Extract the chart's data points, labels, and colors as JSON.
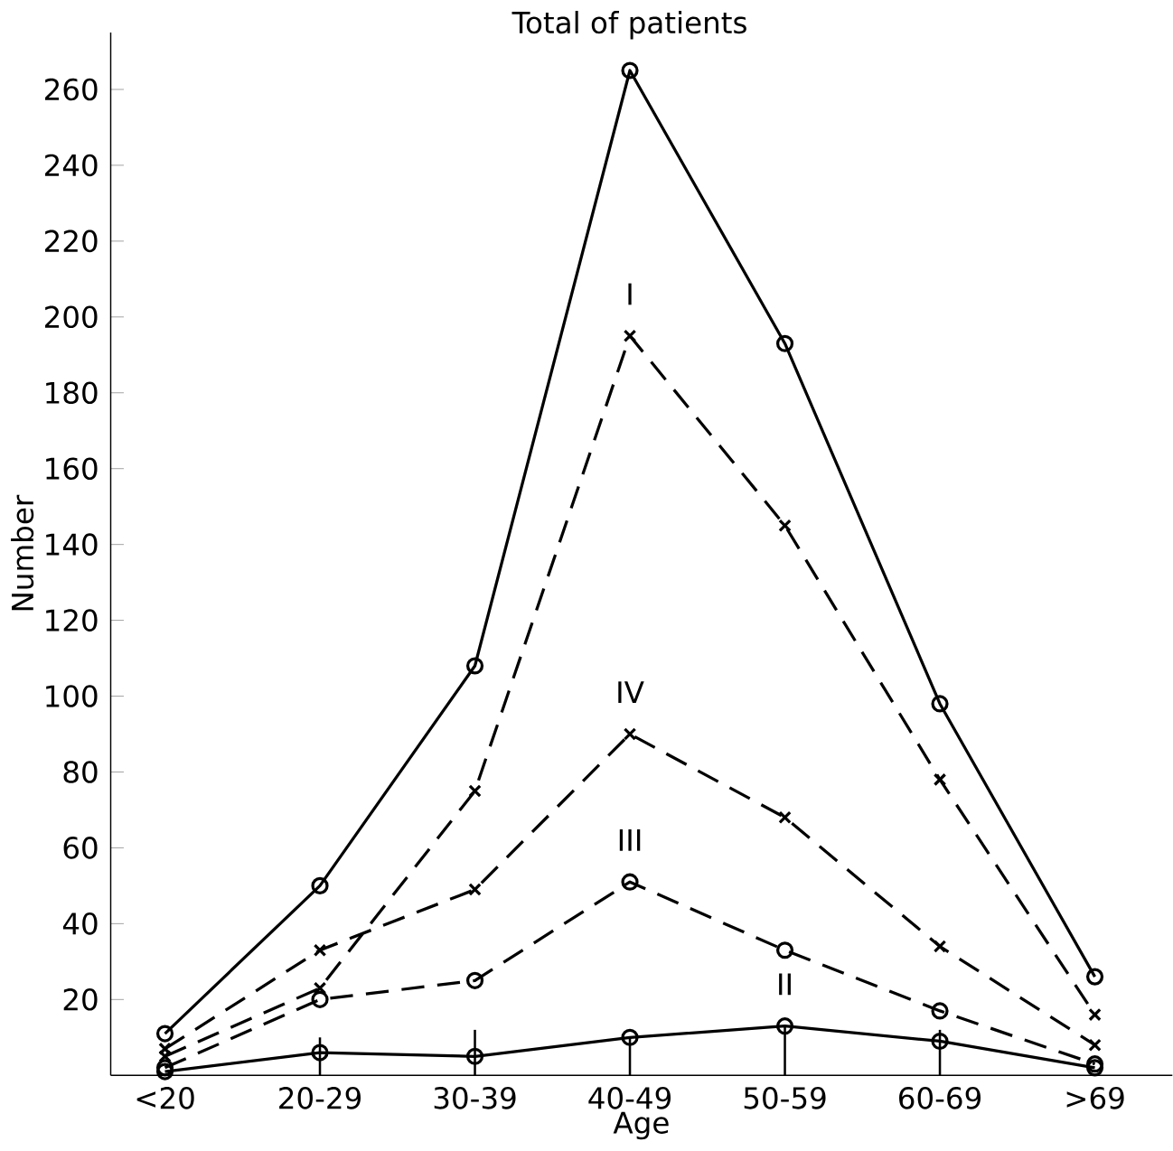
{
  "chart_data": {
    "type": "line",
    "xlabel": "Age",
    "ylabel": "Number",
    "categories": [
      "<20",
      "20-29",
      "30-39",
      "40-49",
      "50-59",
      "60-69",
      ">69"
    ],
    "ylim": [
      0,
      275
    ],
    "yticks": [
      20,
      40,
      60,
      80,
      100,
      120,
      140,
      160,
      180,
      200,
      220,
      240,
      260
    ],
    "grid": false,
    "legend": false,
    "series": [
      {
        "name": "Total of patients",
        "color": "#000000",
        "marker": "circle",
        "line_style": "solid",
        "values": [
          11,
          50,
          108,
          265,
          193,
          98,
          26
        ]
      },
      {
        "name": "I",
        "color": "#000000",
        "marker": "cross",
        "line_style": "dashed",
        "values": [
          5,
          23,
          75,
          195,
          145,
          78,
          16
        ]
      },
      {
        "name": "IV",
        "color": "#000000",
        "marker": "cross",
        "line_style": "dashed",
        "values": [
          7,
          33,
          49,
          90,
          68,
          34,
          8
        ]
      },
      {
        "name": "III",
        "color": "#000000",
        "marker": "circle",
        "line_style": "dashed",
        "values": [
          2,
          20,
          25,
          51,
          33,
          17,
          3
        ]
      },
      {
        "name": "II",
        "color": "#000000",
        "marker": "circle",
        "line_style": "solid",
        "values": [
          1,
          6,
          5,
          10,
          13,
          9,
          2
        ],
        "errors": [
          null,
          [
            0,
            10
          ],
          [
            0,
            12
          ],
          [
            0,
            10
          ],
          [
            0,
            13
          ],
          [
            0,
            12
          ],
          null
        ]
      }
    ]
  }
}
